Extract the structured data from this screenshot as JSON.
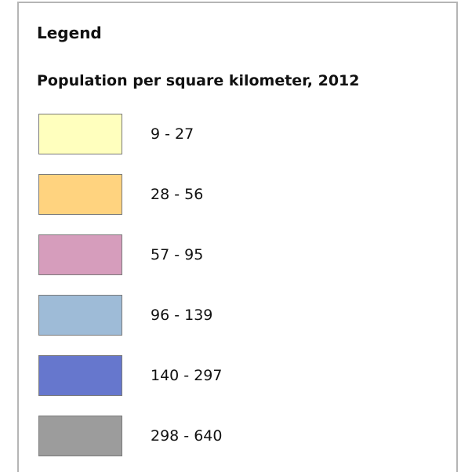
{
  "legend": {
    "title": "Legend",
    "subtitle": "Population per square kilometer, 2012",
    "items": [
      {
        "label": "9 - 27",
        "color": "#ffffbe"
      },
      {
        "label": "28 - 56",
        "color": "#ffd37f"
      },
      {
        "label": "57 - 95",
        "color": "#d69dbc"
      },
      {
        "label": "96 - 139",
        "color": "#9ebbd7"
      },
      {
        "label": "140 - 297",
        "color": "#6677cd"
      },
      {
        "label": "298 - 640",
        "color": "#9c9c9c"
      }
    ]
  }
}
